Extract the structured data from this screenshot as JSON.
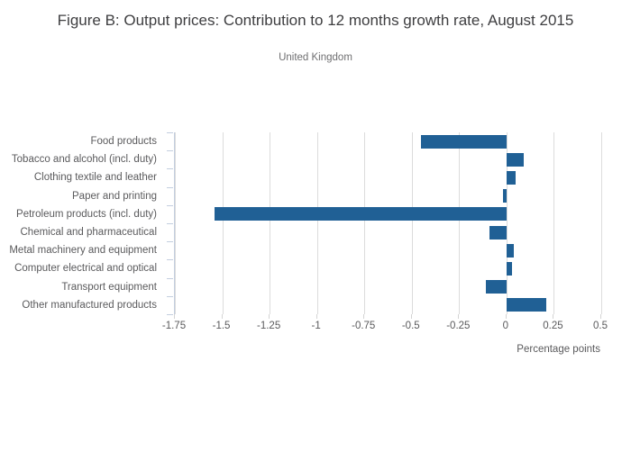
{
  "chart_data": {
    "type": "bar",
    "orientation": "horizontal",
    "title": "Figure B: Output prices: Contribution to 12 months growth rate, August 2015",
    "subtitle": "United Kingdom",
    "categories": [
      "Food products",
      "Tobacco and alcohol (incl. duty)",
      "Clothing textile and leather",
      "Paper and printing",
      "Petroleum products (incl. duty)",
      "Chemical and pharmaceutical",
      "Metal machinery and equipment",
      "Computer electrical and optical",
      "Transport equipment",
      "Other manufactured products"
    ],
    "values": [
      -0.45,
      0.09,
      0.05,
      -0.02,
      -1.54,
      -0.09,
      0.04,
      0.03,
      -0.11,
      0.21
    ],
    "xlabel": "Percentage points",
    "ylabel": "",
    "xlim": [
      -1.75,
      0.5
    ],
    "xticks": [
      -1.75,
      -1.5,
      -1.25,
      -1,
      -0.75,
      -0.5,
      -0.25,
      0,
      0.25,
      0.5
    ],
    "xtick_labels": [
      "-1.75",
      "-1.5",
      "-1.25",
      "-1",
      "-0.75",
      "-0.5",
      "-0.25",
      "0",
      "0.25",
      "0.5"
    ],
    "grid": true,
    "legend": "none",
    "bar_color": "#206095"
  }
}
